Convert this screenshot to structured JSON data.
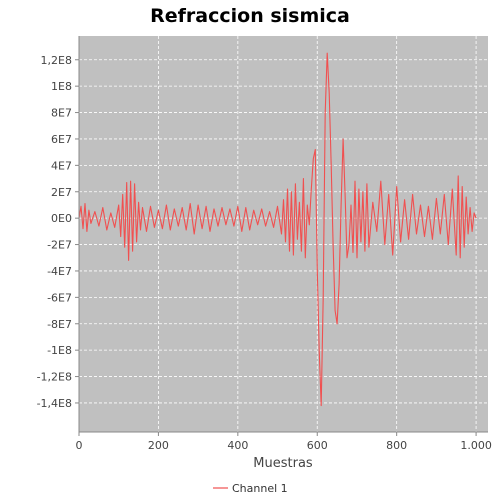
{
  "chart_data": {
    "type": "line",
    "title": "Refraccion sismica",
    "xlabel": "Muestras",
    "ylabel": "",
    "xlim": [
      0,
      1030
    ],
    "ylim": [
      -162000000,
      138000000
    ],
    "x_ticks": [
      0,
      200,
      400,
      600,
      800,
      1000
    ],
    "x_tick_labels": [
      "0",
      "200",
      "400",
      "600",
      "800",
      "1.000"
    ],
    "y_ticks": [
      120000000,
      100000000,
      80000000,
      60000000,
      40000000,
      20000000,
      0,
      -20000000,
      -40000000,
      -60000000,
      -80000000,
      -100000000,
      -120000000,
      -140000000
    ],
    "y_tick_labels": [
      "1,2E8",
      "1E8",
      "8E7",
      "6E7",
      "4E7",
      "2E7",
      "0E0",
      "-2E7",
      "-4E7",
      "-6E7",
      "-8E7",
      "-1E8",
      "-1,2E8",
      "-1,4E8"
    ],
    "grid": true,
    "legend": "bottom",
    "background_color": "#c0c0c0",
    "series": [
      {
        "name": "Channel 1",
        "color": "#f05050",
        "x": [
          0,
          5,
          10,
          15,
          20,
          25,
          30,
          40,
          50,
          60,
          70,
          80,
          90,
          100,
          105,
          110,
          115,
          120,
          125,
          130,
          135,
          140,
          145,
          150,
          155,
          160,
          170,
          180,
          190,
          200,
          210,
          220,
          230,
          240,
          250,
          260,
          270,
          280,
          290,
          300,
          310,
          320,
          330,
          340,
          350,
          360,
          370,
          380,
          390,
          400,
          410,
          420,
          430,
          440,
          450,
          460,
          470,
          480,
          490,
          500,
          510,
          515,
          520,
          525,
          530,
          535,
          540,
          545,
          550,
          555,
          560,
          565,
          570,
          575,
          580,
          585,
          590,
          595,
          600,
          605,
          610,
          615,
          620,
          625,
          630,
          635,
          640,
          645,
          650,
          655,
          660,
          665,
          670,
          675,
          680,
          685,
          690,
          695,
          700,
          705,
          710,
          715,
          720,
          725,
          730,
          740,
          750,
          760,
          770,
          780,
          790,
          800,
          810,
          820,
          830,
          840,
          850,
          860,
          870,
          880,
          890,
          900,
          910,
          920,
          930,
          940,
          950,
          955,
          960,
          965,
          970,
          975,
          980,
          985,
          990,
          995,
          1000
        ],
        "values": [
          0,
          9000000,
          -8000000,
          11000000,
          -10000000,
          6000000,
          -4000000,
          5000000,
          -6000000,
          8000000,
          -9000000,
          4000000,
          -7000000,
          10000000,
          -14000000,
          18000000,
          -22000000,
          27000000,
          -32000000,
          28000000,
          -25000000,
          26000000,
          -18000000,
          12000000,
          -9000000,
          8000000,
          -10000000,
          9000000,
          -7000000,
          6000000,
          -8000000,
          10000000,
          -9000000,
          7000000,
          -6000000,
          8000000,
          -9000000,
          11000000,
          -12000000,
          10000000,
          -8000000,
          9000000,
          -10000000,
          7000000,
          -6000000,
          8000000,
          -5000000,
          7000000,
          -6000000,
          9000000,
          -10000000,
          8000000,
          -9000000,
          6000000,
          -5000000,
          7000000,
          -6000000,
          5000000,
          -7000000,
          9000000,
          -12000000,
          14000000,
          -18000000,
          22000000,
          -25000000,
          20000000,
          -28000000,
          26000000,
          -16000000,
          12000000,
          -25000000,
          30000000,
          -30000000,
          10000000,
          -5000000,
          22000000,
          45000000,
          52000000,
          -40000000,
          -100000000,
          -142000000,
          -60000000,
          80000000,
          125000000,
          95000000,
          40000000,
          -20000000,
          -70000000,
          -80000000,
          -50000000,
          10000000,
          60000000,
          20000000,
          -30000000,
          -20000000,
          10000000,
          -26000000,
          28000000,
          -30000000,
          22000000,
          -18000000,
          20000000,
          -25000000,
          26000000,
          -22000000,
          12000000,
          -10000000,
          28000000,
          -20000000,
          18000000,
          -28000000,
          24000000,
          -18000000,
          14000000,
          -16000000,
          18000000,
          -12000000,
          10000000,
          -14000000,
          9000000,
          -16000000,
          15000000,
          -12000000,
          18000000,
          -20000000,
          22000000,
          -28000000,
          32000000,
          -30000000,
          24000000,
          -22000000,
          16000000,
          -12000000,
          8000000,
          -10000000,
          4000000,
          0
        ]
      }
    ]
  }
}
